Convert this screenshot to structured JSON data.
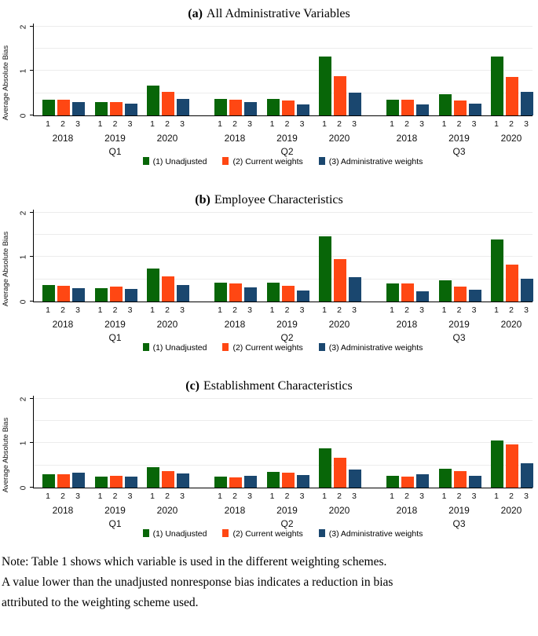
{
  "colors": {
    "unadjusted": "#086608",
    "current_weights": "#ff4713",
    "administrative_weights": "#1a476f",
    "gridline": "#ececec",
    "axis": "#000000"
  },
  "chart_data": [
    {
      "type": "bar",
      "title_prefix": "(a)",
      "title_text": "All Administrative Variables",
      "ylabel": "Average Absolute Bias",
      "yticks": [
        0,
        1,
        2
      ],
      "ylim": [
        0,
        2
      ],
      "gridlines": [
        0.5,
        1,
        1.5,
        2
      ],
      "grid": true,
      "legend_position": "bottom",
      "quarters": [
        "Q1",
        "Q2",
        "Q3"
      ],
      "years": [
        "2018",
        "2019",
        "2020"
      ],
      "bar_labels": [
        "1",
        "2",
        "3"
      ],
      "categories": [
        "Q1 2018",
        "Q1 2019",
        "Q1 2020",
        "Q2 2018",
        "Q2 2019",
        "Q2 2020",
        "Q3 2018",
        "Q3 2019",
        "Q3 2020"
      ],
      "series": [
        {
          "name": "(1) Unadjusted",
          "color": "#086608",
          "values": [
            0.35,
            0.3,
            0.68,
            0.38,
            0.38,
            1.33,
            0.35,
            0.47,
            1.32
          ]
        },
        {
          "name": "(2) Current weights",
          "color": "#ff4713",
          "values": [
            0.35,
            0.31,
            0.53,
            0.36,
            0.33,
            0.88,
            0.36,
            0.33,
            0.87
          ]
        },
        {
          "name": "(3) Administrative weights",
          "color": "#1a476f",
          "values": [
            0.3,
            0.27,
            0.38,
            0.31,
            0.24,
            0.52,
            0.24,
            0.26,
            0.53
          ]
        }
      ]
    },
    {
      "type": "bar",
      "title_prefix": "(b)",
      "title_text": "Employee Characteristics",
      "ylabel": "Average Absolute Bias",
      "yticks": [
        0,
        1,
        2
      ],
      "ylim": [
        0,
        2
      ],
      "gridlines": [
        0.5,
        1,
        1.5,
        2
      ],
      "grid": true,
      "legend_position": "bottom",
      "quarters": [
        "Q1",
        "Q2",
        "Q3"
      ],
      "years": [
        "2018",
        "2019",
        "2020"
      ],
      "bar_labels": [
        "1",
        "2",
        "3"
      ],
      "categories": [
        "Q1 2018",
        "Q1 2019",
        "Q1 2020",
        "Q2 2018",
        "Q2 2019",
        "Q2 2020",
        "Q3 2018",
        "Q3 2019",
        "Q3 2020"
      ],
      "series": [
        {
          "name": "(1) Unadjusted",
          "color": "#086608",
          "values": [
            0.37,
            0.31,
            0.75,
            0.43,
            0.42,
            1.47,
            0.4,
            0.48,
            1.4
          ]
        },
        {
          "name": "(2) Current weights",
          "color": "#ff4713",
          "values": [
            0.36,
            0.33,
            0.57,
            0.4,
            0.35,
            0.95,
            0.4,
            0.33,
            0.83
          ]
        },
        {
          "name": "(3) Administrative weights",
          "color": "#1a476f",
          "values": [
            0.3,
            0.28,
            0.38,
            0.32,
            0.25,
            0.55,
            0.23,
            0.27,
            0.52
          ]
        }
      ]
    },
    {
      "type": "bar",
      "title_prefix": "(c)",
      "title_text": "Establishment Characteristics",
      "ylabel": "Average Absolute Bias",
      "yticks": [
        0,
        1,
        2
      ],
      "ylim": [
        0,
        2
      ],
      "gridlines": [
        0.5,
        1,
        1.5,
        2
      ],
      "grid": true,
      "legend_position": "bottom",
      "quarters": [
        "Q1",
        "Q2",
        "Q3"
      ],
      "years": [
        "2018",
        "2019",
        "2020"
      ],
      "bar_labels": [
        "1",
        "2",
        "3"
      ],
      "categories": [
        "Q1 2018",
        "Q1 2019",
        "Q1 2020",
        "Q2 2018",
        "Q2 2019",
        "Q2 2020",
        "Q3 2018",
        "Q3 2019",
        "Q3 2020"
      ],
      "series": [
        {
          "name": "(1) Unadjusted",
          "color": "#086608",
          "values": [
            0.3,
            0.24,
            0.46,
            0.24,
            0.35,
            0.88,
            0.26,
            0.42,
            1.07
          ]
        },
        {
          "name": "(2) Current weights",
          "color": "#ff4713",
          "values": [
            0.31,
            0.27,
            0.38,
            0.23,
            0.33,
            0.67,
            0.25,
            0.38,
            0.97
          ]
        },
        {
          "name": "(3) Administrative weights",
          "color": "#1a476f",
          "values": [
            0.34,
            0.25,
            0.32,
            0.27,
            0.28,
            0.4,
            0.3,
            0.27,
            0.55
          ]
        }
      ]
    }
  ],
  "note": {
    "lines": [
      "Note: Table 1 shows which variable is used in the different weighting schemes.",
      "A value lower than the unadjusted nonresponse bias indicates a reduction in bias",
      "attributed to the weighting scheme used."
    ]
  }
}
